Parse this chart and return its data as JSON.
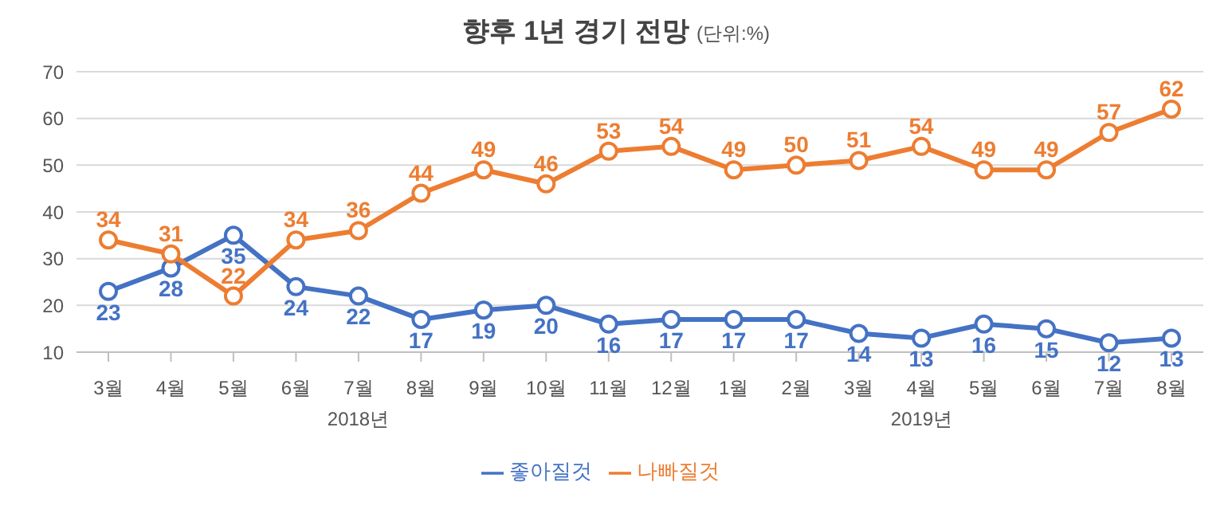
{
  "chart_data": {
    "type": "line",
    "title": "향후 1년 경기 전망",
    "subtitle": "(단위:%)",
    "categories": [
      "3월",
      "4월",
      "5월",
      "6월",
      "7월",
      "8월",
      "9월",
      "10월",
      "11월",
      "12월",
      "1월",
      "2월",
      "3월",
      "4월",
      "5월",
      "6월",
      "7월",
      "8월"
    ],
    "series": [
      {
        "name": "좋아질것",
        "color": "#4472c4",
        "values": [
          23,
          28,
          35,
          24,
          22,
          17,
          19,
          20,
          16,
          17,
          17,
          17,
          14,
          13,
          16,
          15,
          12,
          13
        ]
      },
      {
        "name": "나빠질것",
        "color": "#ed7d31",
        "values": [
          34,
          31,
          22,
          34,
          36,
          44,
          49,
          46,
          53,
          54,
          49,
          50,
          51,
          54,
          49,
          49,
          57,
          62
        ]
      }
    ],
    "annotations": [
      "2018년",
      "2019년"
    ],
    "ylim": [
      10,
      70
    ],
    "yticks": [
      10,
      20,
      30,
      40,
      50,
      60,
      70
    ],
    "grid": "y",
    "legend": "bottom",
    "marker": "circle",
    "data_labels": true
  }
}
